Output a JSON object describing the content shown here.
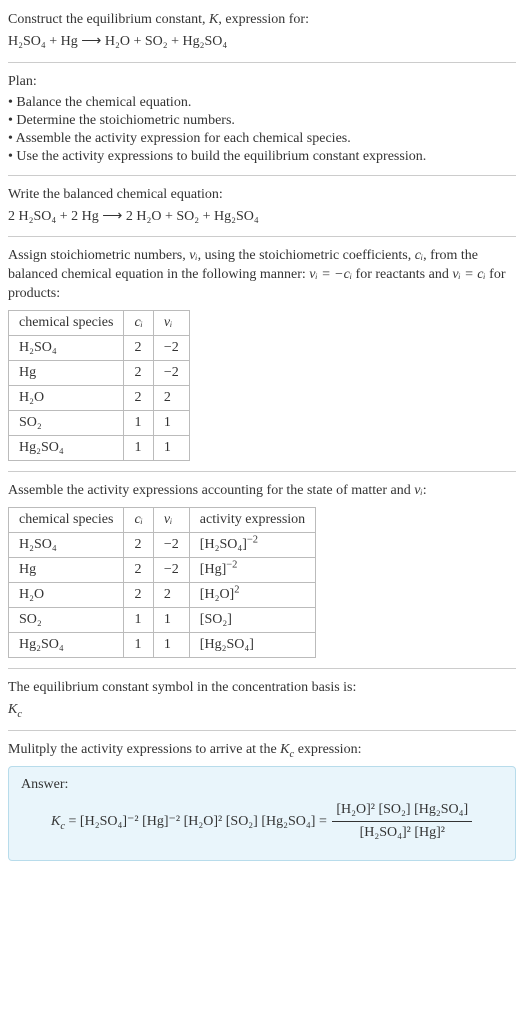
{
  "intro": {
    "line1_pre": "Construct the equilibrium constant, ",
    "line1_K": "K",
    "line1_post": ", expression for:",
    "eq_lhs": "H₂SO₄ + Hg",
    "eq_arrow": " ⟶ ",
    "eq_rhs": "H₂O + SO₂ + Hg₂SO₄"
  },
  "plan": {
    "title": "Plan:",
    "items": [
      "Balance the chemical equation.",
      "Determine the stoichiometric numbers.",
      "Assemble the activity expression for each chemical species.",
      "Use the activity expressions to build the equilibrium constant expression."
    ]
  },
  "balanced": {
    "title": "Write the balanced chemical equation:",
    "eq": "2 H₂SO₄ + 2 Hg ⟶ 2 H₂O + SO₂ + Hg₂SO₄"
  },
  "stoich": {
    "intro_a": "Assign stoichiometric numbers, ",
    "nu_i": "νᵢ",
    "intro_b": ", using the stoichiometric coefficients, ",
    "c_i": "cᵢ",
    "intro_c": ", from the balanced chemical equation in the following manner: ",
    "rel_react": "νᵢ = −cᵢ",
    "intro_d": " for reactants and ",
    "rel_prod": "νᵢ = cᵢ",
    "intro_e": " for products:",
    "headers": [
      "chemical species",
      "cᵢ",
      "νᵢ"
    ],
    "rows": [
      [
        "H₂SO₄",
        "2",
        "−2"
      ],
      [
        "Hg",
        "2",
        "−2"
      ],
      [
        "H₂O",
        "2",
        "2"
      ],
      [
        "SO₂",
        "1",
        "1"
      ],
      [
        "Hg₂SO₄",
        "1",
        "1"
      ]
    ]
  },
  "activity": {
    "intro_a": "Assemble the activity expressions accounting for the state of matter and ",
    "nu_i": "νᵢ",
    "intro_b": ":",
    "headers": [
      "chemical species",
      "cᵢ",
      "νᵢ",
      "activity expression"
    ],
    "rows": [
      {
        "sp": "H₂SO₄",
        "c": "2",
        "nu": "−2",
        "act_base": "[H₂SO₄]",
        "act_exp": "−2"
      },
      {
        "sp": "Hg",
        "c": "2",
        "nu": "−2",
        "act_base": "[Hg]",
        "act_exp": "−2"
      },
      {
        "sp": "H₂O",
        "c": "2",
        "nu": "2",
        "act_base": "[H₂O]",
        "act_exp": "2"
      },
      {
        "sp": "SO₂",
        "c": "1",
        "nu": "1",
        "act_base": "[SO₂]",
        "act_exp": ""
      },
      {
        "sp": "Hg₂SO₄",
        "c": "1",
        "nu": "1",
        "act_base": "[Hg₂SO₄]",
        "act_exp": ""
      }
    ]
  },
  "kc_symbol": {
    "line": "The equilibrium constant symbol in the concentration basis is:",
    "sym": "K_c"
  },
  "multiply": {
    "title_a": "Mulitply the activity expressions to arrive at the ",
    "kc": "K_c",
    "title_b": " expression:"
  },
  "answer": {
    "label": "Answer:",
    "lhs_sym": "K_c",
    "flat": "[H₂SO₄]⁻² [Hg]⁻² [H₂O]² [SO₂] [Hg₂SO₄]",
    "num": "[H₂O]² [SO₂] [Hg₂SO₄]",
    "den": "[H₂SO₄]² [Hg]²"
  }
}
